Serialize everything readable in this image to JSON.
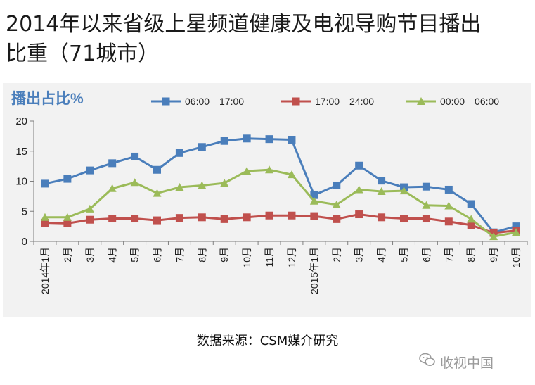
{
  "header": {
    "title_line1": "2014年以来省级上星频道健康及电视导购节目播出",
    "title_line2": "比重（71城市）"
  },
  "chart_data": {
    "type": "line",
    "title": "播出占比%",
    "categories": [
      "2014年1月",
      "2月",
      "3月",
      "4月",
      "5月",
      "6月",
      "7月",
      "8月",
      "9月",
      "10月",
      "11月",
      "12月",
      "2015年1月",
      "2月",
      "3月",
      "4月",
      "5月",
      "6月",
      "7月",
      "8月",
      "9月",
      "10月"
    ],
    "ylim": [
      0,
      20
    ],
    "yticks": [
      0,
      5,
      10,
      15,
      20
    ],
    "grid": false,
    "legend_position": "top",
    "series": [
      {
        "name": "06:00－17:00",
        "color": "#4a7ebb",
        "marker": "square",
        "values": [
          9.6,
          10.4,
          11.8,
          13.0,
          14.1,
          11.9,
          14.7,
          15.7,
          16.7,
          17.1,
          17.0,
          16.9,
          7.7,
          9.3,
          12.6,
          10.1,
          9.0,
          9.1,
          8.6,
          6.2,
          1.5,
          2.5
        ]
      },
      {
        "name": "17:00－24:00",
        "color": "#c0504d",
        "marker": "square",
        "values": [
          3.1,
          3.0,
          3.6,
          3.8,
          3.8,
          3.5,
          3.9,
          4.0,
          3.7,
          4.0,
          4.3,
          4.3,
          4.2,
          3.7,
          4.5,
          4.0,
          3.8,
          3.8,
          3.3,
          2.7,
          1.4,
          1.8
        ]
      },
      {
        "name": "00:00－06:00",
        "color": "#9bbb59",
        "marker": "triangle",
        "values": [
          4.0,
          4.0,
          5.4,
          8.8,
          9.8,
          8.0,
          9.0,
          9.3,
          9.7,
          11.7,
          11.9,
          11.1,
          6.7,
          6.1,
          8.6,
          8.3,
          8.4,
          6.0,
          5.9,
          3.7,
          0.8,
          1.5
        ]
      }
    ]
  },
  "footer": {
    "source": "数据来源：CSM媒介研究",
    "watermark": "收视中国",
    "watermark_icon": "wechat-icon"
  }
}
